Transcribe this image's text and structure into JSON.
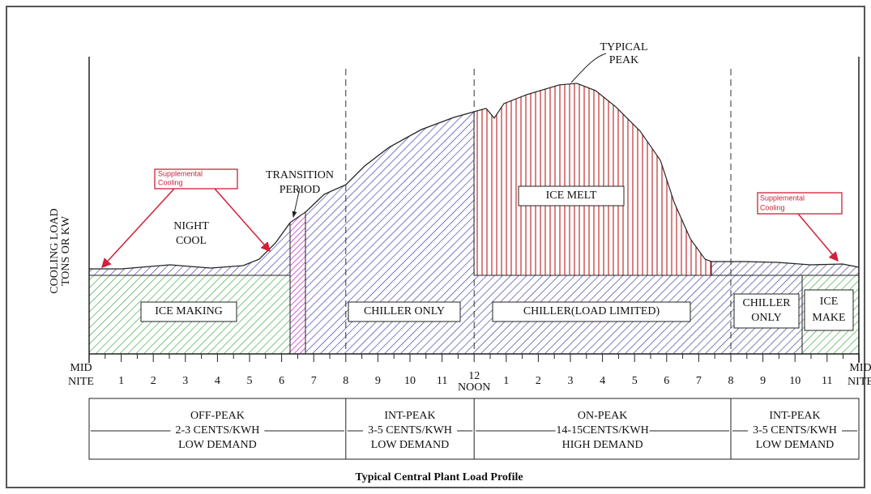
{
  "title": "Typical Central Plant Load Profile",
  "y_axis_label": [
    "COOLING LOAD",
    "TONS OR KW"
  ],
  "hours": [
    [
      "MID",
      "NITE"
    ],
    "1",
    "2",
    "3",
    "4",
    "5",
    "6",
    "7",
    "8",
    "9",
    "10",
    "11",
    [
      "12",
      "NOON"
    ],
    "1",
    "2",
    "3",
    "4",
    "5",
    "6",
    "7",
    "8",
    "9",
    "10",
    "11",
    [
      "MID",
      "NITE"
    ]
  ],
  "regions": {
    "ice_making": [
      "ICE MAKING"
    ],
    "chiller_only": [
      "CHILLER ONLY"
    ],
    "chiller_limited": [
      "CHILLER(LOAD LIMITED)"
    ],
    "chiller_only_2": [
      "CHILLER",
      "ONLY"
    ],
    "ice_make": [
      "ICE",
      "MAKE"
    ],
    "ice_melt": [
      "ICE MELT"
    ]
  },
  "annotations": {
    "night_cool": [
      "NIGHT",
      "COOL"
    ],
    "transition": [
      "TRANSITION",
      "PERIOD"
    ],
    "typical_peak": [
      "TYPICAL",
      "PEAK"
    ],
    "supplemental_1": [
      "Supplemental",
      "Cooling"
    ],
    "supplemental_2": [
      "Supplemental",
      "Cooling"
    ]
  },
  "periods": [
    [
      "OFF-PEAK",
      "2-3 CENTS/KWH",
      "LOW DEMAND"
    ],
    [
      "INT-PEAK",
      "3-5 CENTS/KWH",
      "LOW DEMAND"
    ],
    [
      "ON-PEAK",
      "14-15CENTS/KWH",
      "HIGH DEMAND"
    ],
    [
      "INT-PEAK",
      "3-5 CENTS/KWH",
      "LOW DEMAND"
    ]
  ]
}
